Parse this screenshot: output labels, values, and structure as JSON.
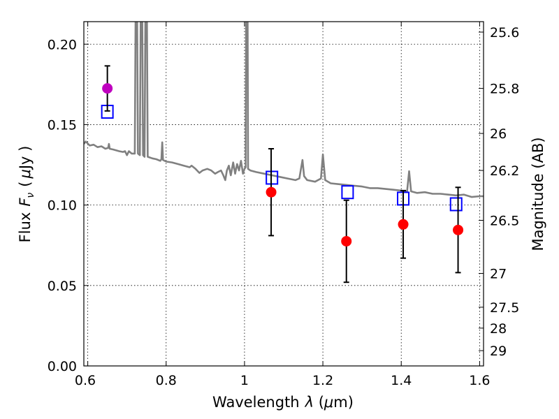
{
  "chart_data": {
    "type": "scatter",
    "xlabel": "Wavelength",
    "xlabel_symbol": "λ",
    "xlabel_unit_open": " (",
    "xlabel_unit_mu": "μ",
    "xlabel_unit_close": "m)",
    "ylabel": "Flux",
    "ylabel_symbol": "F",
    "ylabel_subscript": "ν",
    "ylabel_unit_open": "(",
    "ylabel_unit_mu": "μ",
    "ylabel_unit_close": "Jy )",
    "y2label": "Magnitude (AB)",
    "xlim": [
      0.59,
      1.61
    ],
    "ylim": [
      0.0,
      0.214
    ],
    "grid": true,
    "x_ticks": [
      {
        "value": 0.6,
        "label": ""
      },
      {
        "value": 0.8,
        "label": "0.8"
      },
      {
        "value": 1.0,
        "label": "1"
      },
      {
        "value": 1.2,
        "label": "1.2"
      },
      {
        "value": 1.4,
        "label": "1.4"
      },
      {
        "value": 1.6,
        "label": "1.6"
      }
    ],
    "x_tick_extra_label": "0.6",
    "y_ticks": [
      {
        "value": 0.0,
        "label": "0.00"
      },
      {
        "value": 0.05,
        "label": "0.05"
      },
      {
        "value": 0.1,
        "label": "0.10"
      },
      {
        "value": 0.15,
        "label": "0.15"
      },
      {
        "value": 0.2,
        "label": "0.20"
      }
    ],
    "y2_ticks": [
      {
        "flux": 0.2075,
        "label": "25.6"
      },
      {
        "flux": 0.1725,
        "label": "25.8"
      },
      {
        "flux": 0.1445,
        "label": "26"
      },
      {
        "flux": 0.1215,
        "label": "26.2"
      },
      {
        "flux": 0.0905,
        "label": "26.5"
      },
      {
        "flux": 0.0575,
        "label": "27"
      },
      {
        "flux": 0.0365,
        "label": "27.5"
      },
      {
        "flux": 0.0235,
        "label": "28"
      },
      {
        "flux": 0.0095,
        "label": "29"
      }
    ],
    "series": [
      {
        "name": "observed_magenta",
        "color": "#bf00bf",
        "marker": "circle",
        "points": [
          {
            "x": 0.65,
            "y": 0.1725,
            "err_low": 0.014,
            "err_high": 0.014
          }
        ]
      },
      {
        "name": "observed",
        "color": "#ff0000",
        "marker": "circle",
        "points": [
          {
            "x": 1.068,
            "y": 0.108,
            "err_low": 0.027,
            "err_high": 0.027
          },
          {
            "x": 1.26,
            "y": 0.0775,
            "err_low": 0.0255,
            "err_high": 0.0255
          },
          {
            "x": 1.405,
            "y": 0.088,
            "err_low": 0.021,
            "err_high": 0.021
          },
          {
            "x": 1.545,
            "y": 0.0845,
            "err_low": 0.0265,
            "err_high": 0.0265
          }
        ]
      },
      {
        "name": "model_photometry",
        "color": "#0000ff",
        "marker": "square",
        "points": [
          {
            "x": 0.65,
            "y": 0.158
          },
          {
            "x": 1.07,
            "y": 0.117
          },
          {
            "x": 1.263,
            "y": 0.108
          },
          {
            "x": 1.405,
            "y": 0.104
          },
          {
            "x": 1.54,
            "y": 0.1005
          }
        ]
      },
      {
        "name": "model_spectrum",
        "color": "#808080",
        "marker": "line",
        "points": [
          [
            0.59,
            0.138
          ],
          [
            0.595,
            0.1395
          ],
          [
            0.605,
            0.137
          ],
          [
            0.615,
            0.1375
          ],
          [
            0.625,
            0.136
          ],
          [
            0.635,
            0.1365
          ],
          [
            0.645,
            0.135
          ],
          [
            0.652,
            0.1355
          ],
          [
            0.654,
            0.138
          ],
          [
            0.656,
            0.135
          ],
          [
            0.665,
            0.1345
          ],
          [
            0.68,
            0.1335
          ],
          [
            0.69,
            0.133
          ],
          [
            0.695,
            0.1335
          ],
          [
            0.7,
            0.131
          ],
          [
            0.705,
            0.1335
          ],
          [
            0.712,
            0.132
          ],
          [
            0.72,
            0.132
          ],
          [
            0.722,
            0.214
          ],
          [
            0.726,
            0.214
          ],
          [
            0.728,
            0.132
          ],
          [
            0.733,
            0.131
          ],
          [
            0.735,
            0.214
          ],
          [
            0.739,
            0.214
          ],
          [
            0.741,
            0.131
          ],
          [
            0.745,
            0.13
          ],
          [
            0.747,
            0.214
          ],
          [
            0.751,
            0.214
          ],
          [
            0.753,
            0.13
          ],
          [
            0.765,
            0.129
          ],
          [
            0.775,
            0.1285
          ],
          [
            0.785,
            0.1275
          ],
          [
            0.788,
            0.1285
          ],
          [
            0.79,
            0.139
          ],
          [
            0.792,
            0.128
          ],
          [
            0.8,
            0.127
          ],
          [
            0.815,
            0.1265
          ],
          [
            0.83,
            0.1255
          ],
          [
            0.845,
            0.1245
          ],
          [
            0.86,
            0.1235
          ],
          [
            0.865,
            0.1245
          ],
          [
            0.875,
            0.1225
          ],
          [
            0.885,
            0.12
          ],
          [
            0.893,
            0.1215
          ],
          [
            0.905,
            0.1225
          ],
          [
            0.915,
            0.1215
          ],
          [
            0.925,
            0.1195
          ],
          [
            0.932,
            0.1205
          ],
          [
            0.94,
            0.1215
          ],
          [
            0.946,
            0.1185
          ],
          [
            0.951,
            0.1155
          ],
          [
            0.955,
            0.1215
          ],
          [
            0.96,
            0.1245
          ],
          [
            0.965,
            0.1185
          ],
          [
            0.971,
            0.1265
          ],
          [
            0.976,
            0.1195
          ],
          [
            0.981,
            0.1255
          ],
          [
            0.986,
            0.1215
          ],
          [
            0.991,
            0.1275
          ],
          [
            0.996,
            0.1195
          ],
          [
            1.0,
            0.1225
          ],
          [
            1.003,
            0.1235
          ],
          [
            1.004,
            0.214
          ],
          [
            1.008,
            0.214
          ],
          [
            1.009,
            0.1225
          ],
          [
            1.015,
            0.1215
          ],
          [
            1.03,
            0.1205
          ],
          [
            1.05,
            0.1195
          ],
          [
            1.07,
            0.1185
          ],
          [
            1.09,
            0.1175
          ],
          [
            1.11,
            0.1165
          ],
          [
            1.13,
            0.1155
          ],
          [
            1.14,
            0.1165
          ],
          [
            1.148,
            0.128
          ],
          [
            1.152,
            0.118
          ],
          [
            1.16,
            0.1155
          ],
          [
            1.18,
            0.1145
          ],
          [
            1.195,
            0.1165
          ],
          [
            1.2,
            0.1315
          ],
          [
            1.206,
            0.1155
          ],
          [
            1.22,
            0.1135
          ],
          [
            1.24,
            0.113
          ],
          [
            1.26,
            0.1125
          ],
          [
            1.28,
            0.112
          ],
          [
            1.3,
            0.1115
          ],
          [
            1.32,
            0.1105
          ],
          [
            1.34,
            0.1105
          ],
          [
            1.36,
            0.11
          ],
          [
            1.38,
            0.1095
          ],
          [
            1.4,
            0.109
          ],
          [
            1.41,
            0.1085
          ],
          [
            1.415,
            0.1085
          ],
          [
            1.42,
            0.121
          ],
          [
            1.425,
            0.1085
          ],
          [
            1.44,
            0.1075
          ],
          [
            1.46,
            0.108
          ],
          [
            1.48,
            0.107
          ],
          [
            1.5,
            0.107
          ],
          [
            1.52,
            0.1065
          ],
          [
            1.54,
            0.106
          ],
          [
            1.56,
            0.1065
          ],
          [
            1.58,
            0.105
          ],
          [
            1.6,
            0.1055
          ],
          [
            1.61,
            0.1055
          ]
        ]
      }
    ]
  }
}
